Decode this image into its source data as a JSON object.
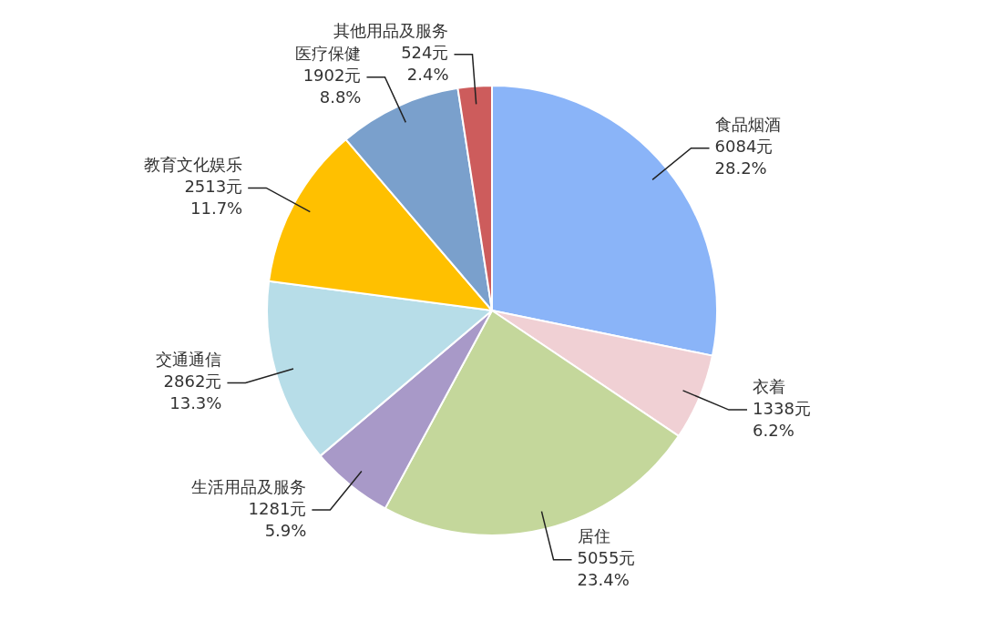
{
  "chart_data": {
    "type": "pie",
    "categories": [
      "食品烟酒",
      "衣着",
      "居住",
      "生活用品及服务",
      "交通通信",
      "教育文化娱乐",
      "医疗保健",
      "其他用品及服务"
    ],
    "values": [
      6084,
      1338,
      5055,
      1281,
      2862,
      2513,
      1902,
      524
    ],
    "value_labels": [
      "6084元\n28.2%",
      "1338元\n6.2%",
      "5055元\n23.4%",
      "1281元\n5.9%",
      "2862元\n13.3%",
      "2513元\n11.7%",
      "1902元\n8.8%",
      "524元\n2.4%"
    ],
    "colors": [
      "#8ab4f8",
      "#f0d0d4",
      "#c4d79b",
      "#a899c8",
      "#b7dde8",
      "#ffc000",
      "#7aa0cc",
      "#cd5c5c"
    ],
    "legend": false
  }
}
